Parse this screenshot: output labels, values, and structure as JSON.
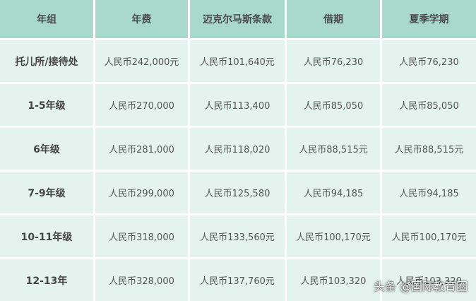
{
  "table": {
    "header": [
      "年组",
      "年费",
      "迈克尔马斯条款",
      "借期",
      "夏季学期"
    ],
    "rows": [
      [
        "托儿所/接待处",
        "人民币242,000元",
        "人民币101,640元",
        "人民币76,230",
        "人民币76,230"
      ],
      [
        "1-5年级",
        "人民币270,000",
        "人民币113,400",
        "人民币85,050",
        "人民币85,050"
      ],
      [
        "6年级",
        "人民币281,000",
        "人民币118,020",
        "人民币88,515元",
        "人民币88,515元"
      ],
      [
        "7-9年级",
        "人民币299,000",
        "人民币125,580",
        "人民币94,185",
        "人民币94,185"
      ],
      [
        "10-11年级",
        "人民币318,000",
        "人民币133,560元",
        "人民币100,170元",
        "人民币100,170元"
      ],
      [
        "12-13年",
        "人民币328,000",
        "人民币137,760元",
        "人民币103,320",
        "人民币103,320"
      ]
    ]
  },
  "watermark": "头条 @国际教育圈"
}
